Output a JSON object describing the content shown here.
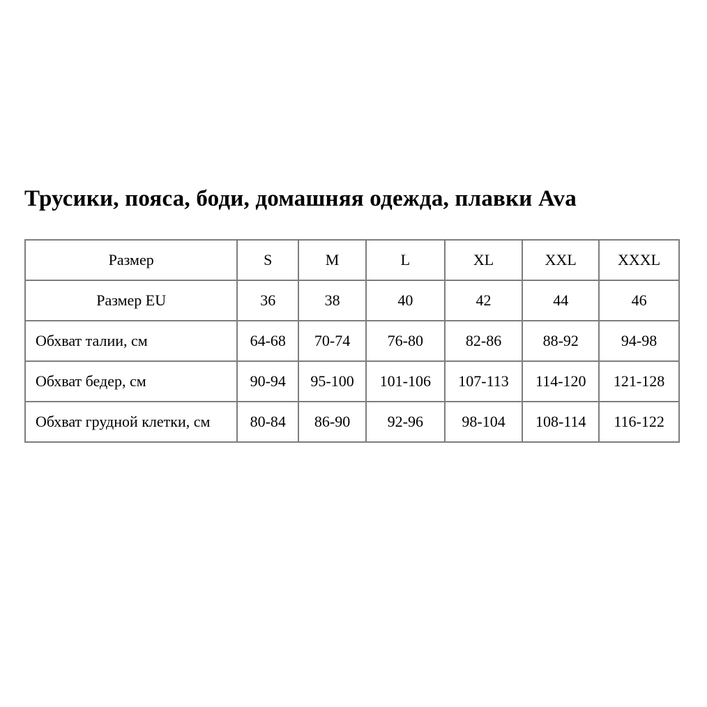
{
  "page_title": "Трусики, пояса, боди, домашняя одежда, плавки Ava",
  "size_table": {
    "header": {
      "label": "Размер",
      "sizes": [
        "S",
        "M",
        "L",
        "XL",
        "XXL",
        "XXXL"
      ]
    },
    "rows": [
      {
        "label": "Размер EU",
        "values": [
          "36",
          "38",
          "40",
          "42",
          "44",
          "46"
        ]
      },
      {
        "label": "Обхват талии, см",
        "values": [
          "64-68",
          "70-74",
          "76-80",
          "82-86",
          "88-92",
          "94-98"
        ]
      },
      {
        "label": "Обхват бедер, см",
        "values": [
          "90-94",
          "95-100",
          "101-106",
          "107-113",
          "114-120",
          "121-128"
        ]
      },
      {
        "label": "Обхват грудной клетки, см",
        "values": [
          "80-84",
          "86-90",
          "92-96",
          "98-104",
          "108-114",
          "116-122"
        ]
      }
    ],
    "colors": {
      "border": "#7d7d7d",
      "text": "#000000",
      "background": "#ffffff"
    }
  }
}
